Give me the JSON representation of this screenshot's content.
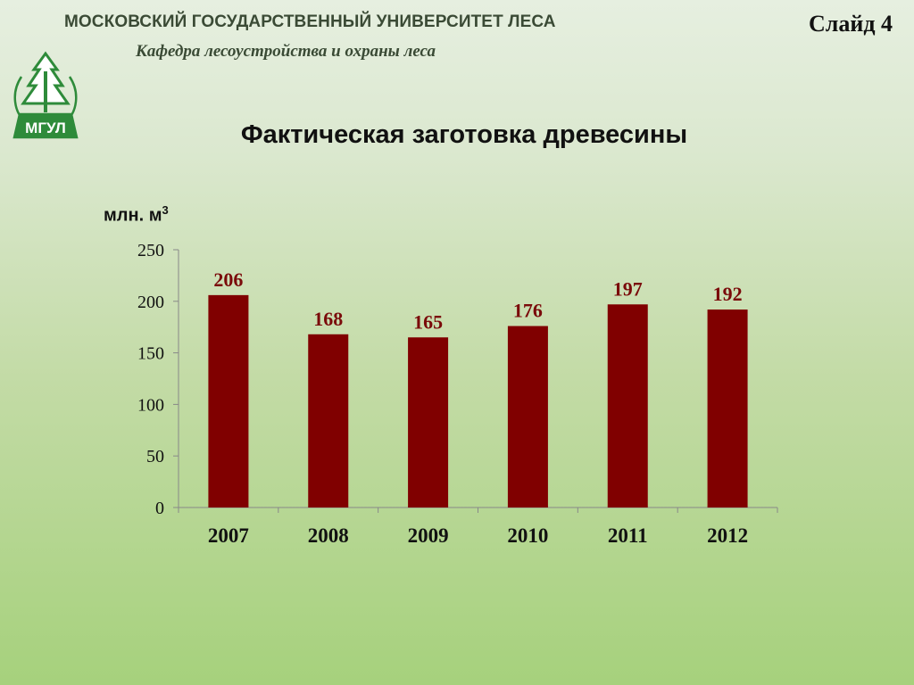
{
  "header": {
    "university": "МОСКОВСКИЙ ГОСУДАРСТВЕННЫЙ УНИВЕРСИТЕТ ЛЕСА",
    "department": "Кафедра лесоустройства и охраны леса",
    "slide_label": "Слайд 4",
    "logo_text": "МГУЛ"
  },
  "colors": {
    "bar": "#800000",
    "data_label": "#7a0a0a",
    "logo": "#2e8b3a",
    "axis": "#888888"
  },
  "chart_data": {
    "type": "bar",
    "title": "Фактическая заготовка древесины",
    "ylabel": "млн. м",
    "ylabel_sup": "3",
    "xlabel": "",
    "categories": [
      "2007",
      "2008",
      "2009",
      "2010",
      "2011",
      "2012"
    ],
    "values": [
      206,
      168,
      165,
      176,
      197,
      192
    ],
    "data_labels": [
      "206",
      "168",
      "165",
      "176",
      "197",
      "192"
    ],
    "ylim": [
      0,
      250
    ],
    "yticks": [
      0,
      50,
      100,
      150,
      200,
      250
    ],
    "ytick_labels": [
      "0",
      "50",
      "100",
      "150",
      "200",
      "250"
    ],
    "grid": false,
    "legend": "none"
  }
}
